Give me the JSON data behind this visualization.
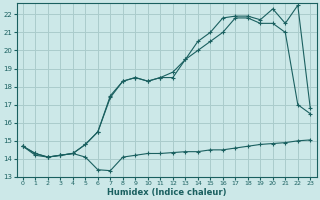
{
  "xlabel": "Humidex (Indice chaleur)",
  "background_color": "#cce8e8",
  "grid_color": "#aacccc",
  "line_color": "#1a6060",
  "xlim": [
    -0.5,
    23.5
  ],
  "ylim": [
    13,
    22.6
  ],
  "xticks": [
    0,
    1,
    2,
    3,
    4,
    5,
    6,
    7,
    8,
    9,
    10,
    11,
    12,
    13,
    14,
    15,
    16,
    17,
    18,
    19,
    20,
    21,
    22,
    23
  ],
  "yticks": [
    13,
    14,
    15,
    16,
    17,
    18,
    19,
    20,
    21,
    22
  ],
  "series1_x": [
    0,
    1,
    2,
    3,
    4,
    5,
    6,
    7,
    8,
    9,
    10,
    11,
    12,
    13,
    14,
    15,
    16,
    17,
    18,
    19,
    20,
    21,
    22,
    23
  ],
  "series1_y": [
    14.7,
    14.2,
    14.1,
    14.2,
    14.3,
    14.1,
    13.4,
    13.35,
    14.1,
    14.2,
    14.3,
    14.3,
    14.35,
    14.4,
    14.4,
    14.5,
    14.5,
    14.6,
    14.7,
    14.8,
    14.85,
    14.9,
    15.0,
    15.05
  ],
  "series2_x": [
    0,
    1,
    2,
    3,
    4,
    5,
    6,
    7,
    8,
    9,
    10,
    11,
    12,
    13,
    14,
    15,
    16,
    17,
    18,
    19,
    20,
    21,
    22,
    23
  ],
  "series2_y": [
    14.7,
    14.3,
    14.1,
    14.2,
    14.3,
    14.8,
    15.5,
    17.4,
    18.3,
    18.5,
    18.3,
    18.5,
    18.5,
    19.5,
    20.0,
    20.5,
    21.0,
    21.8,
    21.8,
    21.5,
    21.5,
    21.0,
    17.0,
    16.5
  ],
  "series3_x": [
    0,
    1,
    2,
    3,
    4,
    5,
    6,
    7,
    8,
    9,
    10,
    11,
    12,
    13,
    14,
    15,
    16,
    17,
    18,
    19,
    20,
    21,
    22,
    23
  ],
  "series3_y": [
    14.7,
    14.3,
    14.1,
    14.2,
    14.3,
    14.8,
    15.5,
    17.5,
    18.3,
    18.5,
    18.3,
    18.5,
    18.8,
    19.5,
    20.5,
    21.0,
    21.8,
    21.9,
    21.9,
    21.7,
    22.3,
    21.5,
    22.5,
    16.8
  ]
}
